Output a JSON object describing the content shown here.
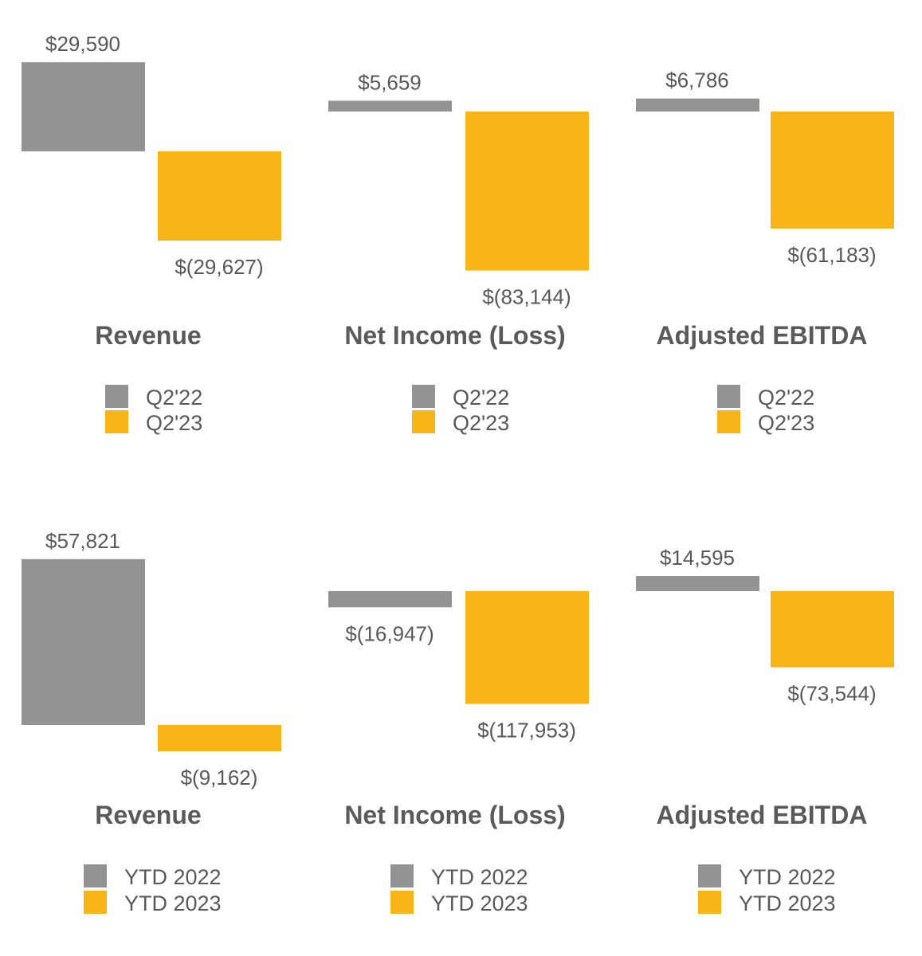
{
  "colors": {
    "prior": "#939393",
    "current": "#F9B518",
    "text": "#595959"
  },
  "chart_data": [
    {
      "type": "bar",
      "title": "Revenue",
      "categories": [
        "Q2'22",
        "Q2'23"
      ],
      "values": [
        29590,
        -29627
      ],
      "labels": [
        "$29,590",
        "$(29,627)"
      ],
      "legend": [
        "Q2'22",
        "Q2'23"
      ]
    },
    {
      "type": "bar",
      "title": "Net Income (Loss)",
      "categories": [
        "Q2'22",
        "Q2'23"
      ],
      "values": [
        5659,
        -83144
      ],
      "labels": [
        "$5,659",
        "$(83,144)"
      ],
      "legend": [
        "Q2'22",
        "Q2'23"
      ]
    },
    {
      "type": "bar",
      "title": "Adjusted EBITDA",
      "categories": [
        "Q2'22",
        "Q2'23"
      ],
      "values": [
        6786,
        -61183
      ],
      "labels": [
        "$6,786",
        "$(61,183)"
      ],
      "legend": [
        "Q2'22",
        "Q2'23"
      ]
    },
    {
      "type": "bar",
      "title": "Revenue",
      "categories": [
        "YTD 2022",
        "YTD 2023"
      ],
      "values": [
        57821,
        -9162
      ],
      "labels": [
        "$57,821",
        "$(9,162)"
      ],
      "legend": [
        "YTD 2022",
        "YTD 2023"
      ]
    },
    {
      "type": "bar",
      "title": "Net Income (Loss)",
      "categories": [
        "YTD 2022",
        "YTD 2023"
      ],
      "values": [
        -16947,
        -117953
      ],
      "labels": [
        "$(16,947)",
        "$(117,953)"
      ],
      "legend": [
        "YTD 2022",
        "YTD 2023"
      ]
    },
    {
      "type": "bar",
      "title": "Adjusted EBITDA",
      "categories": [
        "YTD 2022",
        "YTD 2023"
      ],
      "values": [
        14595,
        -73544
      ],
      "labels": [
        "$14,595",
        "$(73,544)"
      ],
      "legend": [
        "YTD 2022",
        "YTD 2023"
      ]
    }
  ]
}
